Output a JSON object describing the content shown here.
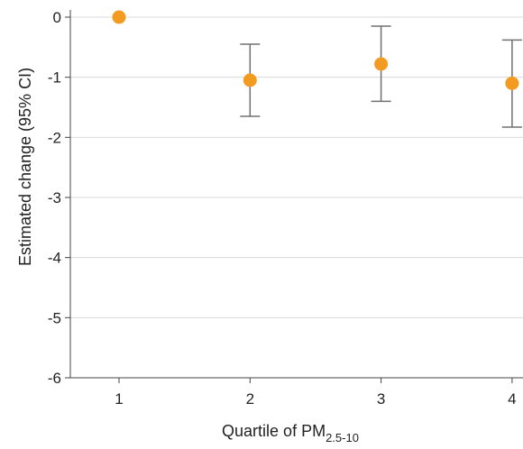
{
  "chart_data": {
    "type": "scatter",
    "title": "",
    "xlabel": {
      "main": "Quartile of PM",
      "subscript": "2.5-10"
    },
    "ylabel": "Estimated change (95% CI)",
    "x_ticks": [
      1,
      2,
      3,
      4
    ],
    "y_ticks": [
      0,
      -1,
      -2,
      -3,
      -4,
      -5,
      -6
    ],
    "y_tick_labels": [
      "0",
      "-1",
      "-2",
      "-3",
      "-4",
      "-5",
      "-6"
    ],
    "ylim": [
      -6,
      0
    ],
    "grid": "horizontal",
    "points": [
      {
        "x": 1,
        "y": 0,
        "ci_low": null,
        "ci_high": null
      },
      {
        "x": 2,
        "y": -1.05,
        "ci_low": -1.65,
        "ci_high": -0.45
      },
      {
        "x": 3,
        "y": -0.78,
        "ci_low": -1.4,
        "ci_high": -0.15
      },
      {
        "x": 4,
        "y": -1.1,
        "ci_low": -1.83,
        "ci_high": -0.38
      }
    ],
    "colors": {
      "marker": "#f39a21",
      "errorbar": "#707070",
      "grid": "#d9d9d9",
      "axis": "#444444"
    }
  }
}
